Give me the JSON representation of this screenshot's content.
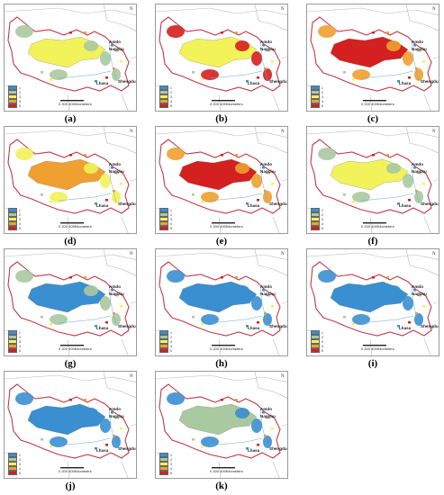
{
  "legend": [
    "1",
    "2",
    "3",
    "4",
    "5"
  ],
  "legend_colors": [
    "#3a8fd0",
    "#a9c9a0",
    "#f2f25a",
    "#f0a030",
    "#d42020"
  ],
  "places": {
    "amdo": "Amdo",
    "nagchu": "Nagchu",
    "lhasa": "Lhasa",
    "shengdu": "Shengdu"
  },
  "scale": {
    "label": "0    200    400Kilometers"
  },
  "north_label": "N",
  "panels": [
    {
      "caption": "(a)",
      "base": "#f2f25a",
      "accent": "#a9c9a0",
      "dominant": "level 3"
    },
    {
      "caption": "(b)",
      "base": "#f2f25a",
      "accent": "#d42020",
      "dominant": "level 3/4"
    },
    {
      "caption": "(c)",
      "base": "#d42020",
      "accent": "#f0a030",
      "dominant": "level 5"
    },
    {
      "caption": "(d)",
      "base": "#f0a030",
      "accent": "#f2f25a",
      "dominant": "level 4"
    },
    {
      "caption": "(e)",
      "base": "#d42020",
      "accent": "#f0a030",
      "dominant": "level 5"
    },
    {
      "caption": "(f)",
      "base": "#f2f25a",
      "accent": "#a9c9a0",
      "dominant": "level 3"
    },
    {
      "caption": "(g)",
      "base": "#3a8fd0",
      "accent": "#a9c9a0",
      "dominant": "level 1"
    },
    {
      "caption": "(h)",
      "base": "#3a8fd0",
      "accent": "#3a8fd0",
      "dominant": "level 1"
    },
    {
      "caption": "(i)",
      "base": "#3a8fd0",
      "accent": "#3a8fd0",
      "dominant": "level 1"
    },
    {
      "caption": "(j)",
      "base": "#3a8fd0",
      "accent": "#3a8fd0",
      "dominant": "level 1"
    },
    {
      "caption": "(k)",
      "base": "#a9c9a0",
      "accent": "#3a8fd0",
      "dominant": "level 2"
    }
  ]
}
